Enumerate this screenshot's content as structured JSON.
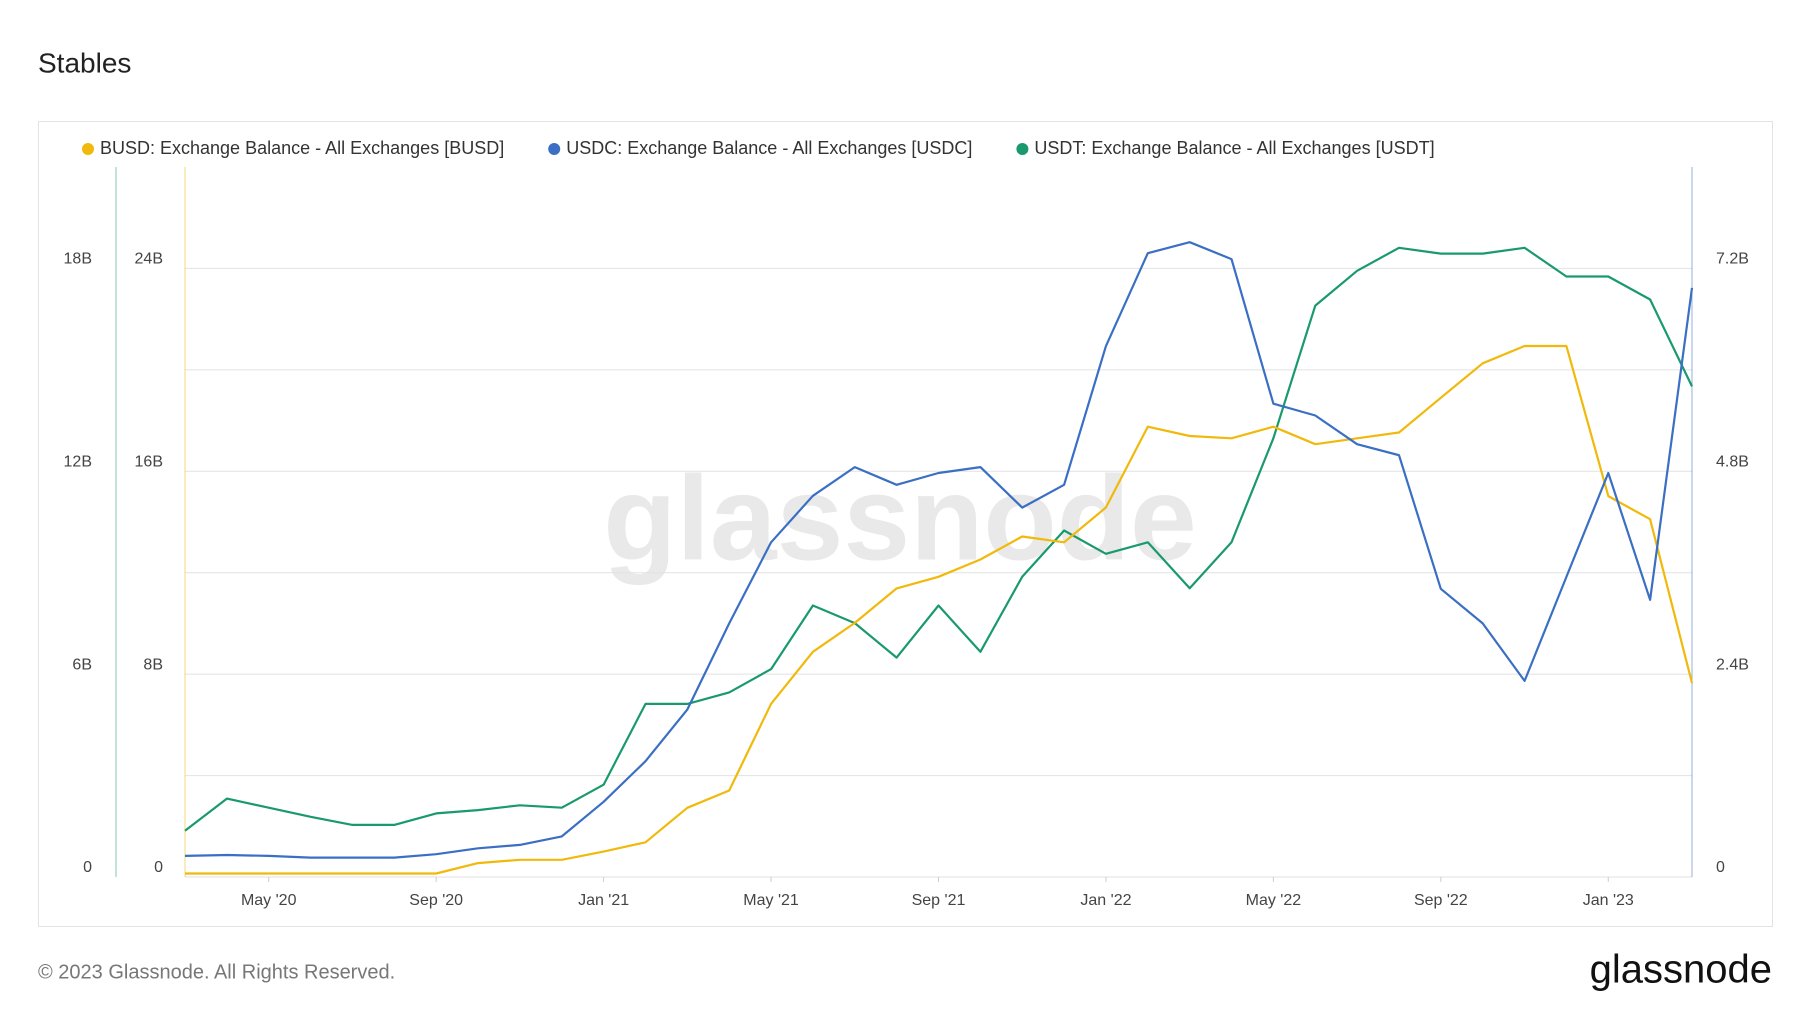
{
  "chart_data": {
    "type": "line",
    "title": "Stables",
    "x": [
      "2020-03",
      "2020-04",
      "2020-05",
      "2020-06",
      "2020-07",
      "2020-08",
      "2020-09",
      "2020-10",
      "2020-11",
      "2020-12",
      "2021-01",
      "2021-02",
      "2021-03",
      "2021-04",
      "2021-05",
      "2021-06",
      "2021-07",
      "2021-08",
      "2021-09",
      "2021-10",
      "2021-11",
      "2021-12",
      "2022-01",
      "2022-02",
      "2022-03",
      "2022-04",
      "2022-05",
      "2022-06",
      "2022-07",
      "2022-08",
      "2022-09",
      "2022-10",
      "2022-11",
      "2022-12",
      "2023-01",
      "2023-02",
      "2023-03"
    ],
    "xlim": [
      "2020-03",
      "2023-03"
    ],
    "xticks": [
      {
        "value": "2020-05",
        "label": "May '20"
      },
      {
        "value": "2020-09",
        "label": "Sep '20"
      },
      {
        "value": "2021-01",
        "label": "Jan '21"
      },
      {
        "value": "2021-05",
        "label": "May '21"
      },
      {
        "value": "2021-09",
        "label": "Sep '21"
      },
      {
        "value": "2022-01",
        "label": "Jan '22"
      },
      {
        "value": "2022-05",
        "label": "May '22"
      },
      {
        "value": "2022-09",
        "label": "Sep '22"
      },
      {
        "value": "2023-01",
        "label": "Jan '23"
      }
    ],
    "ylim": [
      0,
      21
    ],
    "yticks": [
      0,
      {
        "value": 6,
        "label": "6B"
      },
      {
        "value": 12,
        "label": "12B"
      },
      {
        "value": 18,
        "label": "18B"
      }
    ],
    "y3lim": [
      0,
      28
    ],
    "y3ticks": [
      0,
      {
        "value": 8,
        "label": "8B"
      },
      {
        "value": 16,
        "label": "16B"
      },
      {
        "value": 24,
        "label": "24B"
      }
    ],
    "y2lim": [
      0,
      8.4
    ],
    "y2ticks": [
      0,
      {
        "value": 2.4,
        "label": "2.4B"
      },
      {
        "value": 4.8,
        "label": "4.8B"
      },
      {
        "value": 7.2,
        "label": "7.2B"
      }
    ],
    "ygrid": [
      0,
      3,
      6,
      9,
      12,
      15,
      18
    ],
    "series": [
      {
        "name": "BUSD: Exchange Balance - All Exchanges [BUSD]",
        "color": "#f0b90b",
        "axis": "y3",
        "values": [
          0.14,
          0.14,
          0.14,
          0.14,
          0.14,
          0.14,
          0.14,
          0.55,
          0.68,
          0.68,
          1.0,
          1.37,
          2.73,
          3.41,
          6.83,
          8.88,
          10.02,
          11.38,
          11.84,
          12.52,
          13.43,
          13.2,
          14.57,
          17.76,
          17.39,
          17.3,
          17.76,
          17.07,
          17.3,
          17.53,
          18.9,
          20.26,
          20.94,
          20.94,
          15.02,
          14.11,
          7.65
        ]
      },
      {
        "name": "USDC: Exchange Balance - All Exchanges [USDC]",
        "color": "#3a6fc4",
        "axis": "y2",
        "values": [
          0.25,
          0.26,
          0.25,
          0.23,
          0.23,
          0.23,
          0.27,
          0.34,
          0.38,
          0.48,
          0.89,
          1.37,
          1.98,
          3.0,
          3.96,
          4.51,
          4.85,
          4.64,
          4.78,
          4.85,
          4.37,
          4.64,
          6.28,
          7.38,
          7.51,
          7.31,
          5.6,
          5.46,
          5.12,
          4.99,
          3.41,
          3.0,
          2.32,
          3.55,
          4.78,
          3.28,
          6.97
        ]
      },
      {
        "name": "USDT: Exchange Balance - All Exchanges [USDT]",
        "color": "#1a9a6c",
        "axis": "y",
        "values": [
          1.37,
          2.32,
          2.05,
          1.78,
          1.54,
          1.54,
          1.88,
          1.98,
          2.12,
          2.05,
          2.73,
          5.12,
          5.12,
          5.46,
          6.15,
          8.03,
          7.51,
          6.49,
          8.03,
          6.66,
          8.88,
          10.25,
          9.56,
          9.9,
          8.54,
          9.9,
          12.98,
          16.9,
          17.93,
          18.61,
          18.44,
          18.44,
          18.61,
          17.76,
          17.76,
          17.08,
          14.51
        ]
      }
    ]
  },
  "watermark": "glassnode",
  "footer": {
    "copyright": "© 2023 Glassnode. All Rights Reserved.",
    "logo": "glassnode"
  }
}
